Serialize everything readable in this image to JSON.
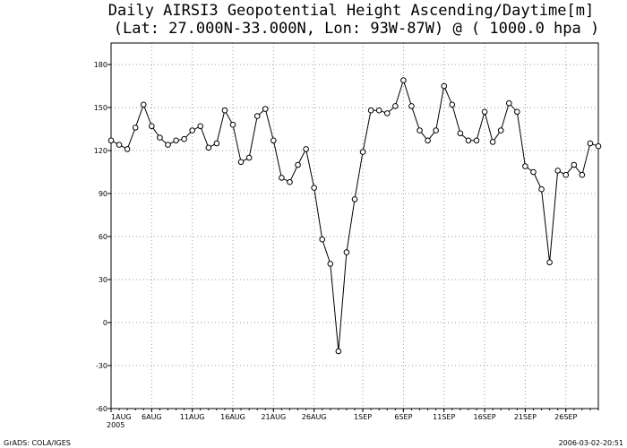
{
  "chart_data": {
    "type": "line",
    "title": "Daily AIRSI3 Geopotential Height Ascending/Daytime[m]",
    "subtitle": "(Lat: 27.000N-33.000N, Lon: 93W-87W) @ ( 1000.0 hpa )",
    "x_tick_labels": [
      "1AUG",
      "6AUG",
      "11AUG",
      "16AUG",
      "21AUG",
      "26AUG",
      "1SEP",
      "6SEP",
      "11SEP",
      "16SEP",
      "21SEP",
      "26SEP"
    ],
    "x_tick_positions": [
      0,
      5,
      10,
      15,
      20,
      25,
      31,
      36,
      41,
      46,
      51,
      56
    ],
    "x_year_label": "2005",
    "y_ticks": [
      -60,
      -30,
      0,
      30,
      60,
      90,
      120,
      150,
      180
    ],
    "ylim": [
      -60,
      195
    ],
    "xlim": [
      0,
      60
    ],
    "grid": true,
    "series": [
      {
        "x": [
          0,
          1,
          2,
          3,
          4,
          5,
          6,
          7,
          8,
          9,
          10,
          11,
          12,
          13,
          14,
          15,
          16,
          17,
          18,
          19,
          20,
          21,
          22,
          23,
          24,
          25,
          26,
          27,
          28,
          29,
          30,
          31,
          32,
          33,
          34,
          35,
          36,
          37,
          38,
          39,
          40,
          41,
          42,
          43,
          44,
          45,
          46,
          47,
          48,
          49,
          50,
          51,
          52,
          53,
          54,
          55,
          56,
          57,
          58,
          59,
          60
        ],
        "values": [
          127,
          124,
          121,
          136,
          152,
          137,
          129,
          124,
          127,
          128,
          134,
          137,
          122,
          125,
          148,
          138,
          112,
          115,
          144,
          149,
          127,
          101,
          98,
          110,
          121,
          94,
          58,
          41,
          -20,
          49,
          86,
          119,
          148,
          148,
          146,
          151,
          169,
          151,
          134,
          127,
          134,
          165,
          152,
          132,
          127,
          127,
          147,
          126,
          134,
          153,
          147,
          109,
          105,
          93,
          42,
          106,
          103,
          110,
          103,
          125,
          123
        ]
      }
    ]
  },
  "footer": {
    "left": "GrADS: COLA/IGES",
    "right": "2006-03-02-20:51"
  }
}
